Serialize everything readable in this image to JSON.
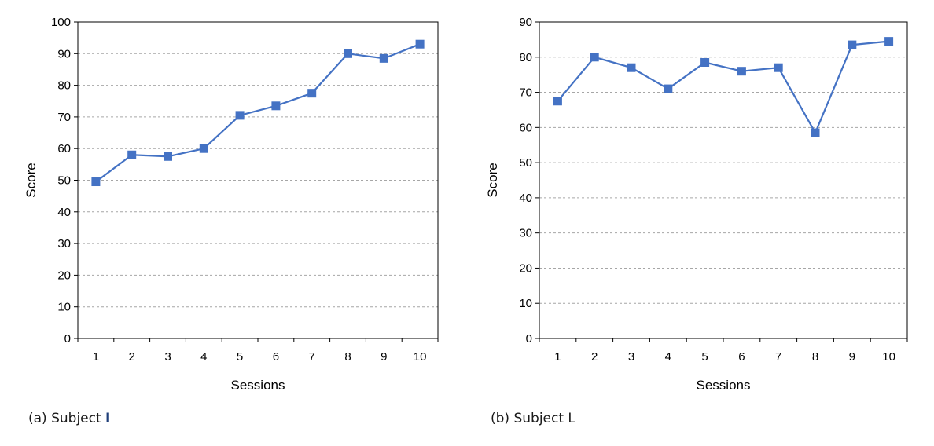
{
  "chart_data": [
    {
      "type": "line",
      "caption": {
        "prefix": "(a) Subject ",
        "subject": "I"
      },
      "xlabel": "Sessions",
      "ylabel": "Score",
      "ylim": [
        0,
        100
      ],
      "ytick_step": 10,
      "grid": "horizontal-dashed",
      "color": "#4472c4",
      "marker": "square",
      "categories": [
        "1",
        "2",
        "3",
        "4",
        "5",
        "6",
        "7",
        "8",
        "9",
        "10"
      ],
      "series": [
        {
          "values": [
            49.5,
            58,
            57.5,
            60,
            70.5,
            73.5,
            77.5,
            90,
            88.5,
            93
          ]
        }
      ]
    },
    {
      "type": "line",
      "caption": {
        "prefix": "(b) Subject ",
        "subject": "L"
      },
      "xlabel": "Sessions",
      "ylabel": "Score",
      "ylim": [
        0,
        90
      ],
      "ytick_step": 10,
      "grid": "horizontal-dashed",
      "color": "#4472c4",
      "marker": "square",
      "categories": [
        "1",
        "2",
        "3",
        "4",
        "5",
        "6",
        "7",
        "8",
        "9",
        "10"
      ],
      "series": [
        {
          "values": [
            67.5,
            80,
            77,
            71,
            78.5,
            76,
            77,
            58.5,
            83.5,
            84.5
          ]
        }
      ]
    }
  ]
}
